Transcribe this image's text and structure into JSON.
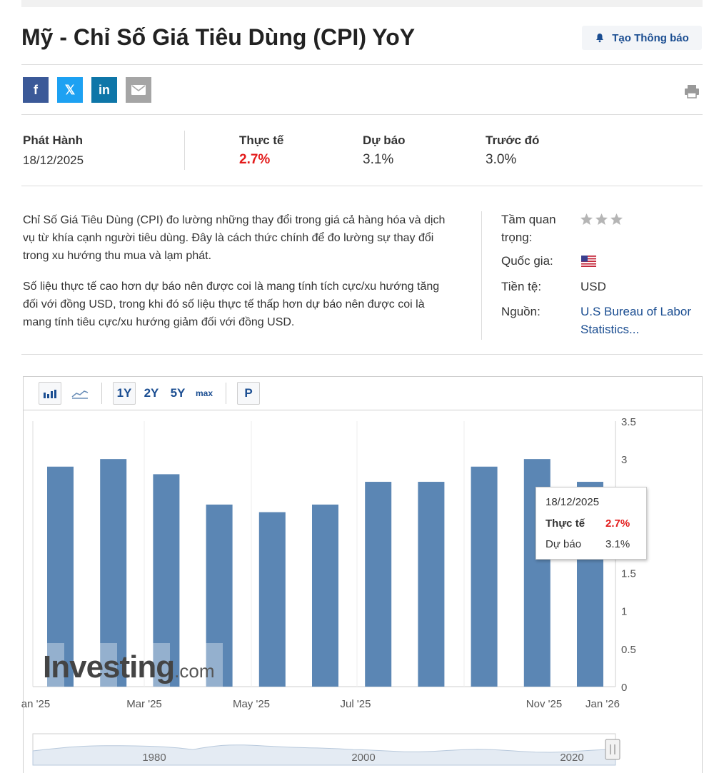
{
  "page": {
    "title": "Mỹ - Chỉ Số Giá Tiêu Dùng (CPI) YoY",
    "alert_button": "Tạo Thông báo"
  },
  "share": {
    "facebook": "f",
    "twitter": "𝕏",
    "linkedin": "in",
    "icons": [
      "facebook-icon",
      "x-twitter-icon",
      "linkedin-icon",
      "email-icon",
      "print-icon"
    ]
  },
  "release": {
    "label": "Phát Hành",
    "date": "18/12/2025",
    "actual_label": "Thực tế",
    "actual_value": "2.7%",
    "forecast_label": "Dự báo",
    "forecast_value": "3.1%",
    "previous_label": "Trước đó",
    "previous_value": "3.0%",
    "actual_color": "#e31b1b"
  },
  "description": {
    "p1": "Chỉ Số Giá Tiêu Dùng (CPI) đo lường những thay đổi trong giá cả hàng hóa và dịch vụ từ khía cạnh người tiêu dùng. Đây là cách thức chính để đo lường sự thay đổi trong xu hướng thu mua và lạm phát.",
    "p2": "Số liệu thực tế cao hơn dự báo nên được coi là mang tính tích cực/xu hướng tăng đối với đồng USD, trong khi đó số liệu thực tế thấp hơn dự báo nên được coi là mang tính tiêu cực/xu hướng giảm đối với đồng USD."
  },
  "info": {
    "importance_label": "Tầm quan trọng:",
    "importance_stars": 3,
    "country_label": "Quốc gia:",
    "currency_label": "Tiền tệ:",
    "currency_value": "USD",
    "source_label": "Nguồn:",
    "source_value": "U.S Bureau of Labor Statistics..."
  },
  "toolbar": {
    "range_1y": "1Y",
    "range_2y": "2Y",
    "range_5y": "5Y",
    "range_max": "max",
    "p_button": "P"
  },
  "tooltip": {
    "date": "18/12/2025",
    "actual_label": "Thực tế",
    "actual_value": "2.7%",
    "forecast_label": "Dự báo",
    "forecast_value": "3.1%"
  },
  "watermark": {
    "brand": "Investing",
    "suffix": ".com"
  },
  "chart_data": {
    "type": "bar",
    "values": [
      2.9,
      3.0,
      2.8,
      2.4,
      2.3,
      2.4,
      2.7,
      2.7,
      2.9,
      3.0,
      2.7
    ],
    "xtick_labels": [
      "an '25",
      "Mar '25",
      "May '25",
      "Jul '25",
      "Nov '25",
      "Jan '26"
    ],
    "yticks": [
      "3.5",
      "3",
      "1.5",
      "1",
      "0.5",
      "0"
    ],
    "ylim": [
      0,
      3.5
    ],
    "bar_color": "#5b86b4",
    "navigator_labels": [
      "1980",
      "2000",
      "2020"
    ]
  }
}
